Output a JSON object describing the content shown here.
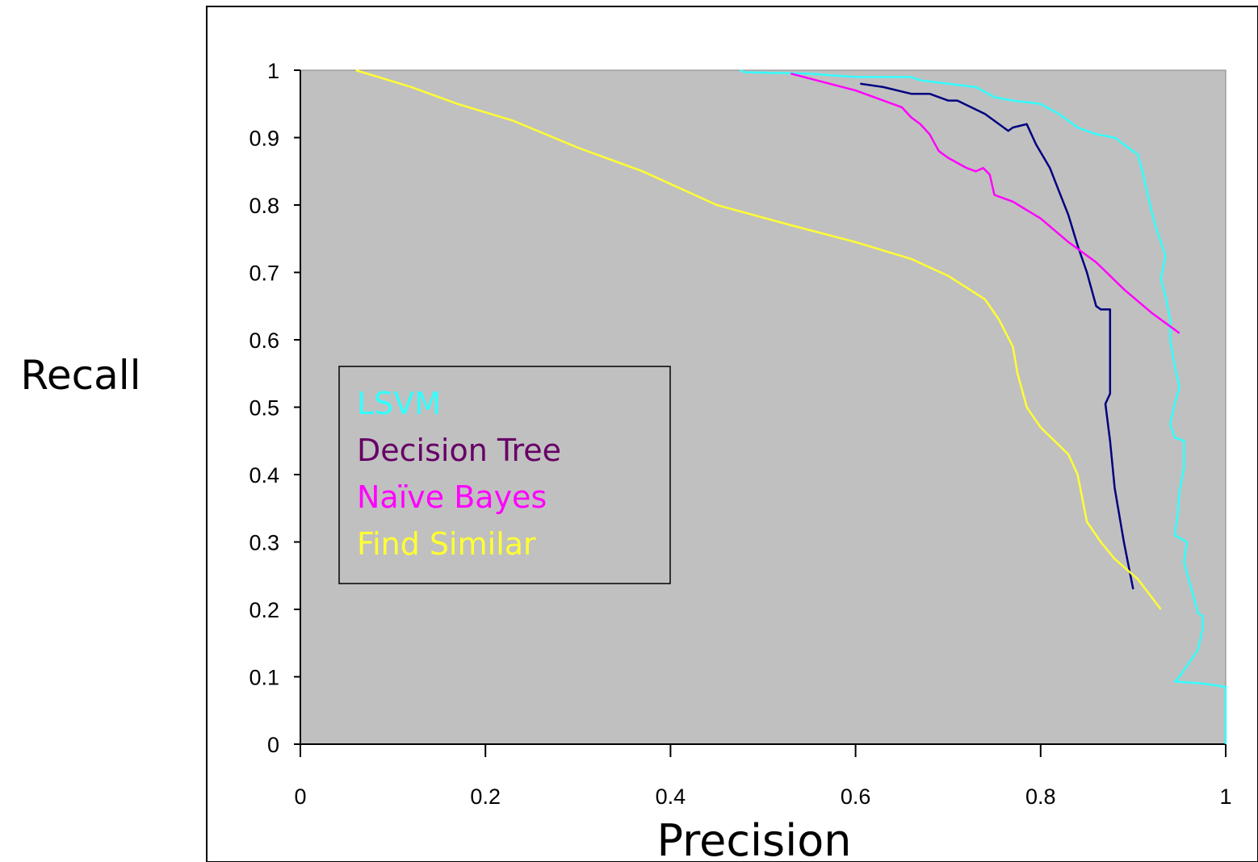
{
  "chart_data": {
    "type": "line",
    "title": "",
    "xlabel": "Precision",
    "ylabel": "Recall",
    "xlim": [
      0,
      1
    ],
    "ylim": [
      0,
      1
    ],
    "x_ticks": [
      "0",
      "0.2",
      "0.4",
      "0.6",
      "0.8",
      "1"
    ],
    "y_ticks": [
      "0",
      "0.1",
      "0.2",
      "0.3",
      "0.4",
      "0.5",
      "0.6",
      "0.7",
      "0.8",
      "0.9",
      "1"
    ],
    "grid": false,
    "plot_background": "#c0c0c0",
    "legend_placement": "left-center",
    "series": [
      {
        "name": "LSVM",
        "color": "#33ffff",
        "points": [
          [
            0.475,
            1.0
          ],
          [
            0.48,
            0.997
          ],
          [
            0.55,
            0.995
          ],
          [
            0.6,
            0.99
          ],
          [
            0.66,
            0.99
          ],
          [
            0.67,
            0.985
          ],
          [
            0.7,
            0.98
          ],
          [
            0.73,
            0.975
          ],
          [
            0.75,
            0.96
          ],
          [
            0.77,
            0.955
          ],
          [
            0.8,
            0.95
          ],
          [
            0.82,
            0.935
          ],
          [
            0.84,
            0.915
          ],
          [
            0.86,
            0.905
          ],
          [
            0.88,
            0.9
          ],
          [
            0.89,
            0.89
          ],
          [
            0.905,
            0.875
          ],
          [
            0.91,
            0.85
          ],
          [
            0.915,
            0.82
          ],
          [
            0.92,
            0.79
          ],
          [
            0.925,
            0.765
          ],
          [
            0.93,
            0.745
          ],
          [
            0.935,
            0.725
          ],
          [
            0.93,
            0.69
          ],
          [
            0.935,
            0.665
          ],
          [
            0.94,
            0.63
          ],
          [
            0.94,
            0.6
          ],
          [
            0.945,
            0.56
          ],
          [
            0.95,
            0.53
          ],
          [
            0.945,
            0.505
          ],
          [
            0.94,
            0.475
          ],
          [
            0.945,
            0.455
          ],
          [
            0.955,
            0.45
          ],
          [
            0.955,
            0.41
          ],
          [
            0.95,
            0.375
          ],
          [
            0.948,
            0.34
          ],
          [
            0.945,
            0.31
          ],
          [
            0.958,
            0.3
          ],
          [
            0.955,
            0.27
          ],
          [
            0.96,
            0.245
          ],
          [
            0.965,
            0.22
          ],
          [
            0.97,
            0.195
          ],
          [
            0.975,
            0.19
          ],
          [
            0.975,
            0.17
          ],
          [
            0.97,
            0.14
          ],
          [
            0.96,
            0.12
          ],
          [
            0.95,
            0.1
          ],
          [
            0.945,
            0.093
          ],
          [
            0.975,
            0.09
          ],
          [
            1.0,
            0.085
          ],
          [
            1.0,
            0.0
          ]
        ]
      },
      {
        "name": "Decision Tree",
        "color": "#000080",
        "points": [
          [
            0.605,
            0.98
          ],
          [
            0.63,
            0.975
          ],
          [
            0.66,
            0.965
          ],
          [
            0.68,
            0.965
          ],
          [
            0.7,
            0.955
          ],
          [
            0.71,
            0.955
          ],
          [
            0.74,
            0.935
          ],
          [
            0.765,
            0.91
          ],
          [
            0.77,
            0.915
          ],
          [
            0.785,
            0.92
          ],
          [
            0.795,
            0.89
          ],
          [
            0.81,
            0.855
          ],
          [
            0.82,
            0.82
          ],
          [
            0.83,
            0.785
          ],
          [
            0.84,
            0.74
          ],
          [
            0.85,
            0.7
          ],
          [
            0.86,
            0.65
          ],
          [
            0.865,
            0.645
          ],
          [
            0.875,
            0.645
          ],
          [
            0.875,
            0.62
          ],
          [
            0.875,
            0.52
          ],
          [
            0.87,
            0.505
          ],
          [
            0.875,
            0.45
          ],
          [
            0.88,
            0.38
          ],
          [
            0.89,
            0.3
          ],
          [
            0.9,
            0.23
          ]
        ]
      },
      {
        "name": "Naïve Bayes",
        "color": "#ff00ff",
        "points": [
          [
            0.53,
            0.995
          ],
          [
            0.6,
            0.97
          ],
          [
            0.65,
            0.945
          ],
          [
            0.66,
            0.93
          ],
          [
            0.67,
            0.92
          ],
          [
            0.68,
            0.905
          ],
          [
            0.69,
            0.88
          ],
          [
            0.7,
            0.87
          ],
          [
            0.72,
            0.855
          ],
          [
            0.73,
            0.85
          ],
          [
            0.738,
            0.855
          ],
          [
            0.745,
            0.845
          ],
          [
            0.75,
            0.815
          ],
          [
            0.77,
            0.805
          ],
          [
            0.8,
            0.78
          ],
          [
            0.83,
            0.745
          ],
          [
            0.86,
            0.715
          ],
          [
            0.89,
            0.675
          ],
          [
            0.92,
            0.64
          ],
          [
            0.95,
            0.61
          ]
        ]
      },
      {
        "name": "Find Similar",
        "color": "#ffff33",
        "points": [
          [
            0.06,
            1.0
          ],
          [
            0.12,
            0.975
          ],
          [
            0.17,
            0.95
          ],
          [
            0.23,
            0.925
          ],
          [
            0.3,
            0.885
          ],
          [
            0.37,
            0.85
          ],
          [
            0.45,
            0.8
          ],
          [
            0.53,
            0.77
          ],
          [
            0.6,
            0.745
          ],
          [
            0.66,
            0.72
          ],
          [
            0.7,
            0.695
          ],
          [
            0.74,
            0.66
          ],
          [
            0.755,
            0.63
          ],
          [
            0.77,
            0.59
          ],
          [
            0.775,
            0.55
          ],
          [
            0.785,
            0.5
          ],
          [
            0.8,
            0.47
          ],
          [
            0.83,
            0.43
          ],
          [
            0.84,
            0.4
          ],
          [
            0.85,
            0.33
          ],
          [
            0.865,
            0.3
          ],
          [
            0.88,
            0.275
          ],
          [
            0.905,
            0.245
          ],
          [
            0.93,
            0.2
          ]
        ]
      }
    ]
  }
}
